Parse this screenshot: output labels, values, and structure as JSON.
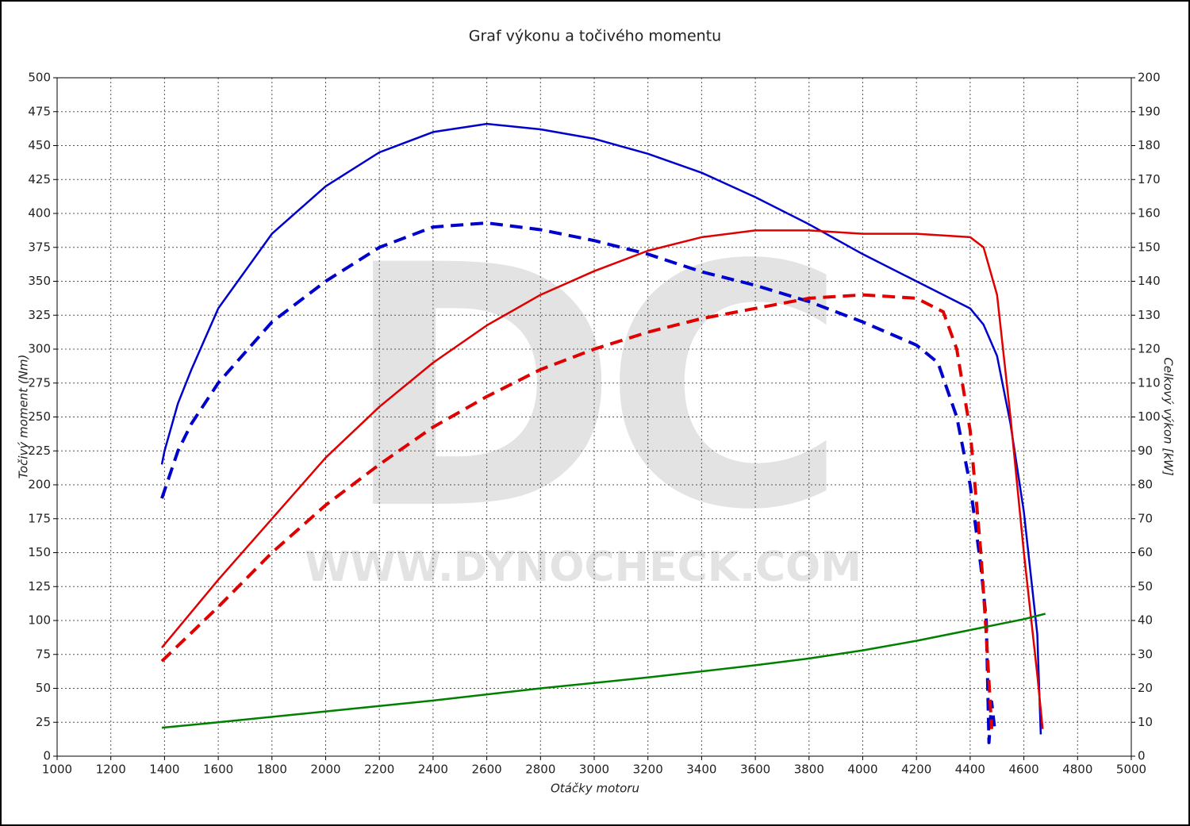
{
  "chart_data": {
    "type": "line",
    "title": "Graf výkonu a točivého momentu",
    "xlabel": "Otáčky motoru",
    "ylabel": "Točivý moment (Nm)",
    "y2label": "Celkový výkon [kW]",
    "watermark": "DC",
    "watermark_url": "WWW.DYNOCHECK.COM",
    "grid": true,
    "xlim": [
      1000,
      5000
    ],
    "xticks": [
      1000,
      1200,
      1400,
      1600,
      1800,
      2000,
      2200,
      2400,
      2600,
      2800,
      3000,
      3200,
      3400,
      3600,
      3800,
      4000,
      4200,
      4400,
      4600,
      4800,
      5000
    ],
    "ylim": [
      0,
      500
    ],
    "yticks": [
      0,
      25,
      50,
      75,
      100,
      125,
      150,
      175,
      200,
      225,
      250,
      275,
      300,
      325,
      350,
      375,
      400,
      425,
      450,
      475,
      500
    ],
    "y2lim": [
      0,
      200
    ],
    "y2ticks": [
      0,
      10,
      20,
      30,
      40,
      50,
      60,
      70,
      80,
      90,
      100,
      110,
      120,
      130,
      140,
      150,
      160,
      170,
      180,
      190,
      200
    ],
    "series": [
      {
        "color": "#0000cc",
        "dash": false,
        "axis": "y",
        "x": [
          1390,
          1400,
          1450,
          1500,
          1600,
          1800,
          2000,
          2200,
          2400,
          2600,
          2800,
          3000,
          3200,
          3400,
          3600,
          3800,
          4000,
          4200,
          4400,
          4450,
          4500,
          4550,
          4600,
          4650,
          4663
        ],
        "values": [
          215,
          225,
          260,
          285,
          330,
          385,
          420,
          445,
          460,
          466,
          462,
          455,
          444,
          430,
          412,
          392,
          370,
          350,
          330,
          318,
          295,
          245,
          180,
          90,
          16
        ]
      },
      {
        "color": "#0000cc",
        "dash": true,
        "axis": "y",
        "x": [
          1390,
          1450,
          1500,
          1600,
          1800,
          2000,
          2200,
          2400,
          2600,
          2800,
          3000,
          3200,
          3400,
          3600,
          3800,
          4000,
          4200,
          4280,
          4350,
          4400,
          4440,
          4460,
          4470,
          4480,
          4490
        ],
        "values": [
          190,
          225,
          245,
          275,
          320,
          350,
          375,
          390,
          393,
          388,
          380,
          370,
          357,
          347,
          335,
          320,
          303,
          290,
          250,
          200,
          140,
          100,
          10,
          40,
          22
        ]
      },
      {
        "color": "#e00000",
        "dash": false,
        "axis": "y2",
        "x": [
          1390,
          1600,
          1800,
          2000,
          2200,
          2400,
          2600,
          2800,
          3000,
          3200,
          3400,
          3600,
          3800,
          4000,
          4200,
          4400,
          4450,
          4500,
          4550,
          4600,
          4650,
          4670
        ],
        "values": [
          32,
          52,
          70,
          88,
          103,
          116,
          127,
          136,
          143,
          149,
          153,
          155,
          155,
          154,
          154,
          153,
          150,
          136,
          100,
          60,
          24,
          8
        ]
      },
      {
        "color": "#e00000",
        "dash": true,
        "axis": "y2",
        "x": [
          1390,
          1600,
          1800,
          2000,
          2200,
          2400,
          2600,
          2800,
          3000,
          3200,
          3400,
          3600,
          3800,
          4000,
          4200,
          4300,
          4350,
          4400,
          4440,
          4460,
          4480
        ],
        "values": [
          28,
          44,
          60,
          74,
          86,
          97,
          106,
          114,
          120,
          125,
          129,
          132,
          135,
          136,
          135,
          131,
          120,
          96,
          60,
          36,
          8
        ]
      },
      {
        "color": "#008000",
        "dash": false,
        "axis": "y",
        "x": [
          1390,
          1600,
          2000,
          2400,
          2800,
          3200,
          3600,
          3800,
          4000,
          4200,
          4400,
          4600,
          4680
        ],
        "values": [
          21,
          25,
          33,
          41,
          50,
          58,
          67,
          72,
          78,
          85,
          93,
          101,
          105
        ]
      }
    ]
  }
}
